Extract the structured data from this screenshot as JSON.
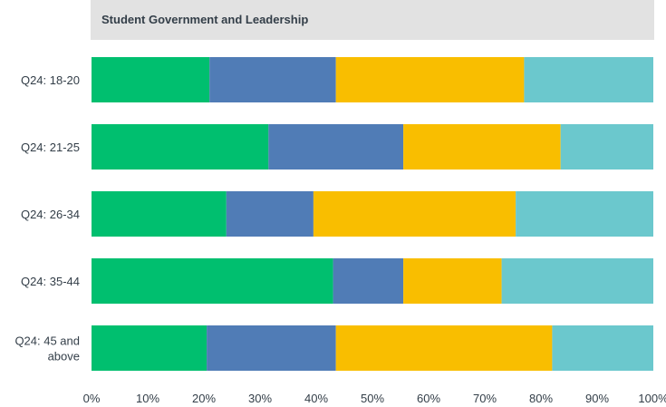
{
  "chart_data": {
    "type": "bar",
    "orientation": "horizontal",
    "stacked": true,
    "title": "Student Government and Leadership",
    "categories": [
      "Q24: 18-20",
      "Q24: 21-25",
      "Q24: 26-34",
      "Q24: 35-44",
      "Q24: 45 and above"
    ],
    "category_lines": [
      [
        "Q24: 18-20"
      ],
      [
        "Q24: 21-25"
      ],
      [
        "Q24: 26-34"
      ],
      [
        "Q24: 35-44"
      ],
      [
        "Q24: 45 and",
        "above"
      ]
    ],
    "series": [
      {
        "color": "#00bf6f",
        "values": [
          21,
          31.5,
          24,
          43,
          20.5
        ]
      },
      {
        "color": "#507cb6",
        "values": [
          22.5,
          24,
          15.5,
          12.5,
          23
        ]
      },
      {
        "color": "#f9be00",
        "values": [
          33.5,
          28,
          36,
          17.5,
          38.5
        ]
      },
      {
        "color": "#6bc8cd",
        "values": [
          23,
          16.5,
          24.5,
          27,
          18
        ]
      }
    ],
    "xlim": [
      0,
      100
    ],
    "xticks": [
      "0%",
      "10%",
      "20%",
      "30%",
      "40%",
      "50%",
      "60%",
      "70%",
      "80%",
      "90%",
      "100%"
    ],
    "grid": false,
    "legend": "none"
  }
}
